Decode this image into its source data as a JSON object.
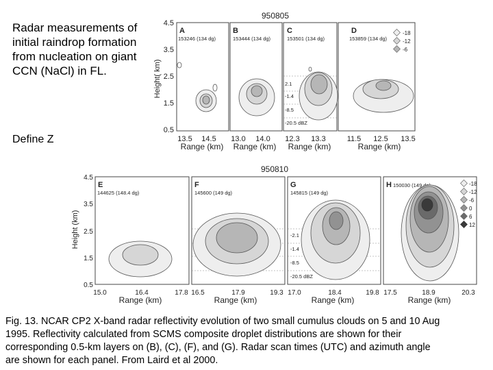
{
  "intro_text": "Radar measurements of initial raindrop formation from nucleation on giant CCN (NaCl) in FL.",
  "define_text": "Define Z",
  "caption": "Fig. 13. NCAR CP2 X-band radar reflectivity evolution of two small cumulus clouds on 5 and 10 Aug\n1995. Reflectivity calculated from SCMS composite droplet distributions are shown for their\ncorresponding 0.5-km layers on (B), (C), (F), and (G). Radar scan times (UTC) and azimuth angle\nare shown for each panel. From Laird et al 2000.",
  "figure_top": {
    "date": "950805",
    "ylabel": "Height( km)",
    "yticks": [
      "4.5",
      "3.5",
      "2.5",
      "1.5",
      "0.5"
    ],
    "panels": [
      {
        "letter": "A",
        "scan": "153246 (134 dg)",
        "xticks": [
          "13.5",
          "14.5"
        ],
        "xlabel": "Range (km)"
      },
      {
        "letter": "B",
        "scan": "153444 (134 dg)",
        "xticks": [
          "13.0",
          "14.0"
        ],
        "xlabel": "Range (km)"
      },
      {
        "letter": "C",
        "scan": "153501 (134 dg)",
        "xticks": [
          "12.3",
          "13.3"
        ],
        "xlabel": "Range (km)"
      },
      {
        "letter": "D",
        "scan": "153859 (134 dg)",
        "xticks": [
          "11.5",
          "12.5",
          "13.5"
        ],
        "xlabel": "Range (km)"
      }
    ],
    "legend": [
      "-18",
      "-12",
      "-6"
    ],
    "dbz_levels": [
      "2.1",
      "-1.4",
      "-8.5",
      "-20.5 dBZ"
    ]
  },
  "figure_bottom": {
    "date": "950810",
    "ylabel": "Height (km)",
    "yticks": [
      "4.5",
      "3.5",
      "2.5",
      "1.5",
      "0.5"
    ],
    "panels": [
      {
        "letter": "E",
        "scan": "144625 (148.4 dg)",
        "xticks": [
          "15.0",
          "16.4",
          "17.8"
        ],
        "xlabel": "Range (km)"
      },
      {
        "letter": "F",
        "scan": "145600 (149 dg)",
        "xticks": [
          "16.5",
          "17.9",
          "19.3"
        ],
        "xlabel": "Range (km)"
      },
      {
        "letter": "G",
        "scan": "145815 (149 dg)",
        "xticks": [
          "17.0",
          "18.4",
          "19.8"
        ],
        "xlabel": "Range (km)"
      },
      {
        "letter": "H",
        "scan": "150030 (149 dg)",
        "xticks": [
          "17.5",
          "18.9",
          "20.3"
        ],
        "xlabel": "Range (km)"
      }
    ],
    "legend": [
      "-18",
      "-12",
      "-6",
      "0",
      "6",
      "12"
    ],
    "dbz_levels": [
      "-2.1",
      "-1.4",
      "-8.5",
      "-20.5 dBZ"
    ]
  },
  "colors": {
    "c1": "#eeeeee",
    "c2": "#d6d6d6",
    "c3": "#b6b6b6",
    "c4": "#929292",
    "c5": "#6a6a6a",
    "c6": "#3a3a3a"
  }
}
